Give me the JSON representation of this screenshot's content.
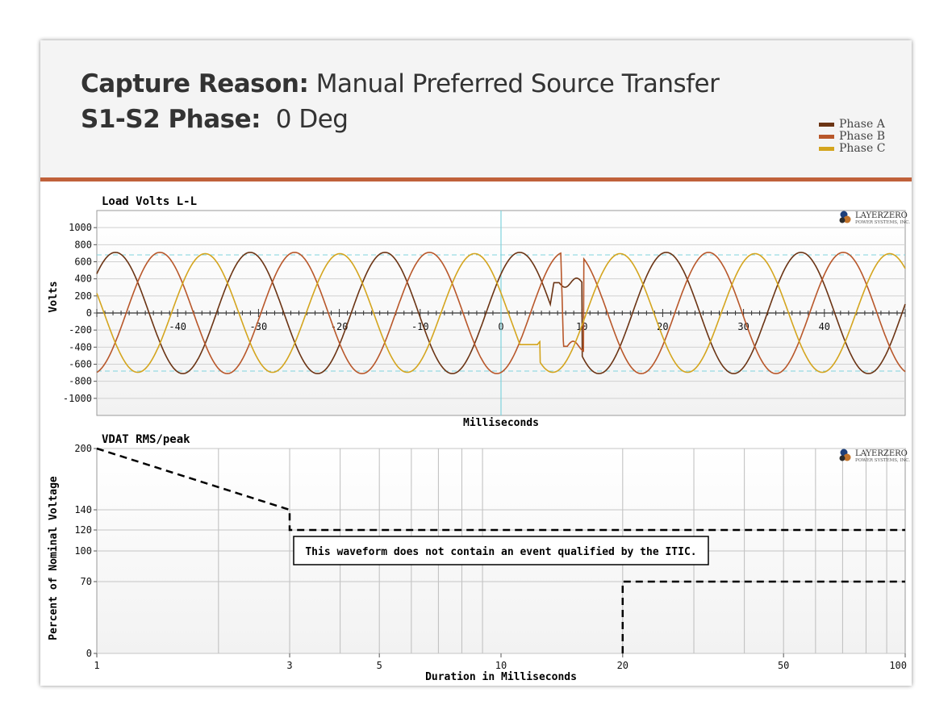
{
  "header": {
    "capture_reason_label": "Capture Reason:",
    "capture_reason_value": " Manual Preferred Source Transfer",
    "phase_label": "S1-S2 Phase:",
    "phase_value": "  0 Deg"
  },
  "logo": {
    "brand": "LAYERZERO",
    "sub": "POWER SYSTEMS, INC."
  },
  "colors": {
    "phase_a": "#6b3414",
    "phase_b": "#b8572a",
    "phase_c": "#d4a51e",
    "marker": "#7fd3dd",
    "rule": "#c0613a"
  },
  "chart_data": [
    {
      "type": "line",
      "title": "Load Volts L-L",
      "xlabel": "Milliseconds",
      "ylabel": "Volts",
      "xlim": [
        -50,
        50
      ],
      "ylim": [
        -1200,
        1200
      ],
      "yticks": [
        1000,
        800,
        600,
        400,
        200,
        0,
        -200,
        -400,
        -600,
        -800,
        -1000
      ],
      "xticks": [
        -40,
        -30,
        -20,
        -10,
        0,
        10,
        20,
        30,
        40
      ],
      "reference_lines": [
        680,
        -680
      ],
      "marker_x": 0,
      "series": [
        {
          "name": "Phase A",
          "amplitude": 710,
          "period_ms": 16.67,
          "peak_at_ms": -47.7,
          "transfer": {
            "dip_start_ms": 6.1,
            "dip_end_ms": 7.2,
            "dip_value": 355,
            "recover_ms": 10
          }
        },
        {
          "name": "Phase B",
          "amplitude": 710,
          "period_ms": 16.67,
          "peak_at_ms": -42.2,
          "transfer": {
            "dip_start_ms": 7.4,
            "dip_end_ms": 8.2,
            "dip_value": -390,
            "recover_ms": 10.2
          }
        },
        {
          "name": "Phase C",
          "amplitude": 695,
          "period_ms": 16.67,
          "peak_at_ms": -36.6,
          "transfer": {
            "dip_start_ms": 0.9,
            "dip_end_ms": 4.5,
            "dip_value": -370,
            "recover_ms": 4.8
          }
        }
      ]
    },
    {
      "type": "line",
      "title": "VDAT RMS/peak",
      "xlabel": "Duration in Milliseconds",
      "ylabel": "Percent of Nominal Voltage",
      "xscale": "log",
      "xlim": [
        1,
        100
      ],
      "xticks": [
        1,
        3,
        5,
        10,
        20,
        50,
        100
      ],
      "yticks": [
        200,
        140,
        120,
        100,
        70,
        0
      ],
      "ylim": [
        0,
        200
      ],
      "series": [
        {
          "name": "upper",
          "points": [
            [
              1,
              200
            ],
            [
              3,
              140
            ],
            [
              3,
              120
            ],
            [
              100,
              120
            ]
          ]
        },
        {
          "name": "lower",
          "points": [
            [
              20,
              0
            ],
            [
              20,
              70
            ],
            [
              100,
              70
            ]
          ]
        }
      ],
      "annotation": "This waveform does not contain an event qualified by the ITIC."
    }
  ]
}
